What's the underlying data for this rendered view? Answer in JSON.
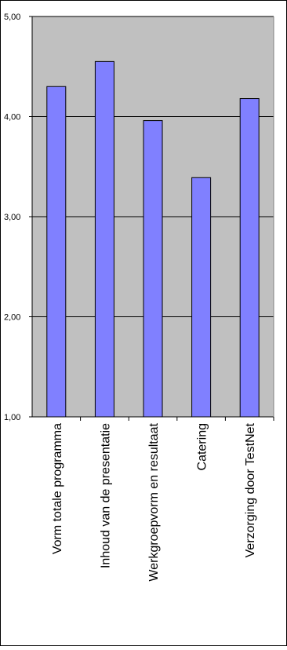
{
  "chart_data": {
    "type": "bar",
    "title": "",
    "xlabel": "",
    "ylabel": "",
    "categories": [
      "Vorm totale programma",
      "Inhoud van de presentatie",
      "Werkgroepvorm en resultaat",
      "Catering",
      "Verzorging door TestNet"
    ],
    "values": [
      4.3,
      4.55,
      3.96,
      3.39,
      4.18
    ],
    "ylim": [
      1.0,
      5.0
    ],
    "yticks": [
      "1,00",
      "2,00",
      "3,00",
      "4,00",
      "5,00"
    ],
    "grid": true,
    "plot_background": "#c0c0c0",
    "bar_color": "#8080ff",
    "legend": "none"
  }
}
